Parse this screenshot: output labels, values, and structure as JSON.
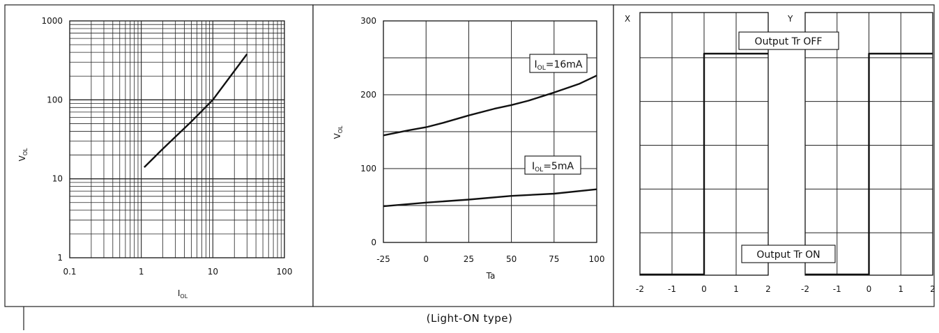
{
  "caption": "(Light-ON type)",
  "colors": {
    "line": "#111111",
    "grid": "#222222",
    "background": "#ffffff"
  },
  "chart_data": [
    {
      "type": "line",
      "scale": "log-log",
      "xlabel": "I",
      "xlabel_sub": "OL",
      "ylabel": "V",
      "ylabel_sub": "OL",
      "xlim": [
        0.1,
        100
      ],
      "ylim": [
        1,
        1000
      ],
      "x_ticks": [
        "0.1",
        "1",
        "10",
        "100"
      ],
      "y_ticks": [
        "1",
        "10",
        "100",
        "1000"
      ],
      "grid": true,
      "series": [
        {
          "x": [
            1.1,
            2,
            5,
            10,
            30
          ],
          "y": [
            14,
            24,
            53,
            100,
            380
          ]
        }
      ]
    },
    {
      "type": "line",
      "xlabel": "Ta",
      "ylabel": "V",
      "ylabel_sub": "OL",
      "xlim": [
        -25,
        100
      ],
      "ylim": [
        0,
        300
      ],
      "x_ticks": [
        "-25",
        "0",
        "25",
        "50",
        "75",
        "100"
      ],
      "y_ticks": [
        "0",
        "100",
        "200",
        "300"
      ],
      "grid": true,
      "series": [
        {
          "name": "I",
          "name_sub": "OL",
          "name_suffix": "=16mA",
          "x": [
            -25,
            -10,
            0,
            10,
            25,
            40,
            50,
            60,
            75,
            90,
            100
          ],
          "y": [
            145,
            152,
            156,
            162,
            172,
            181,
            186,
            192,
            203,
            215,
            226
          ]
        },
        {
          "name": "I",
          "name_sub": "OL",
          "name_suffix": "=5mA",
          "x": [
            -25,
            0,
            25,
            50,
            75,
            100
          ],
          "y": [
            49,
            54,
            58,
            63,
            66,
            72
          ]
        }
      ]
    },
    {
      "type": "line",
      "panel_label": "X",
      "xlim": [
        -2,
        2
      ],
      "x_ticks": [
        "-2",
        "-1",
        "0",
        "1",
        "2"
      ],
      "grid": true,
      "annotations": [
        "Output Tr OFF",
        "Output Tr ON"
      ],
      "series": [
        {
          "x": [
            -2,
            0,
            0,
            2
          ],
          "y": [
            0,
            0,
            1,
            1
          ]
        }
      ]
    },
    {
      "type": "line",
      "panel_label": "Y",
      "xlim": [
        -2,
        2
      ],
      "x_ticks": [
        "-2",
        "-1",
        "0",
        "1",
        "2"
      ],
      "grid": true,
      "series": [
        {
          "x": [
            -2,
            0,
            0,
            2
          ],
          "y": [
            0,
            0,
            1,
            1
          ]
        }
      ]
    }
  ]
}
